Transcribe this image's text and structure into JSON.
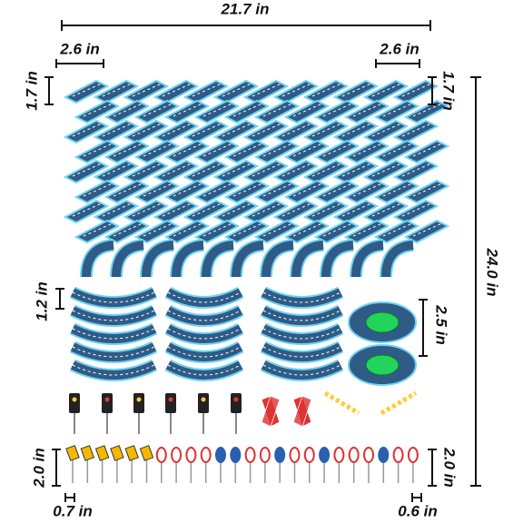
{
  "dimensions": {
    "total_width": "21.7 in",
    "piece_width_left": "2.6 in",
    "piece_width_right": "2.6 in",
    "piece_height_left": "1.7 in",
    "piece_height_right": "1.7 in",
    "total_height": "24.0 in",
    "curve_height": "1.2 in",
    "roundabout_height": "2.5 in",
    "sign_height_left": "2.0 in",
    "sign_height_right": "2.0 in",
    "sign_width_left": "0.7 in",
    "sign_width_right": "0.6 in"
  }
}
